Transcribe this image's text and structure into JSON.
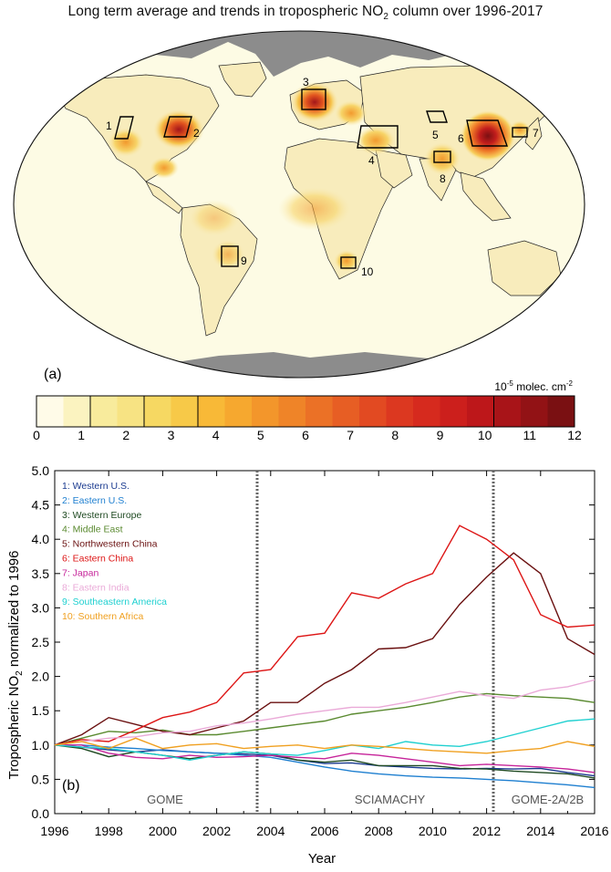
{
  "figure": {
    "title_main": "Long term average and trends in tropospheric NO",
    "title_sub": "2",
    "title_tail": " column over 1996-2017"
  },
  "map": {
    "panel_label": "(a)",
    "regions": [
      {
        "id": "1",
        "name": "Western U.S."
      },
      {
        "id": "2",
        "name": "Eastern U.S."
      },
      {
        "id": "3",
        "name": "Western Europe"
      },
      {
        "id": "4",
        "name": "Middle East"
      },
      {
        "id": "5",
        "name": "Northwestern China"
      },
      {
        "id": "6",
        "name": "Eastern China"
      },
      {
        "id": "7",
        "name": "Japan"
      },
      {
        "id": "8",
        "name": "Eastern India"
      },
      {
        "id": "9",
        "name": "Southeastern America"
      },
      {
        "id": "10",
        "name": "Southern Africa"
      }
    ],
    "colors": {
      "ocean": "#fdfbe4",
      "land_low": "#f9f0c0",
      "polar": "#8c8c8c"
    }
  },
  "colorbar": {
    "unit_prefix": "10",
    "unit_exp": "-5",
    "unit_text": " molec. cm",
    "unit_exp2": "-2",
    "min": 0,
    "max": 12,
    "tick_labels": [
      "0",
      "1",
      "2",
      "3",
      "4",
      "5",
      "6",
      "7",
      "8",
      "9",
      "10",
      "11",
      "12"
    ],
    "colors": [
      "#fffbe8",
      "#fbf3c0",
      "#f8eb9c",
      "#f7e383",
      "#f6d862",
      "#f7c948",
      "#f8b937",
      "#f6a82f",
      "#f3962b",
      "#ef8428",
      "#eb7126",
      "#e75e24",
      "#e24a22",
      "#dc3820",
      "#d62a1e",
      "#cc1f1c",
      "#bd171a",
      "#a81418",
      "#921215",
      "#7a1012"
    ],
    "boxed_segments": [
      [
        2,
        4
      ],
      [
        4,
        6
      ],
      [
        17,
        20
      ]
    ]
  },
  "chart_data": {
    "type": "line",
    "panel_label": "(b)",
    "xlabel": "Year",
    "ylabel_pre": "Tropospheric NO",
    "ylabel_sub": "2",
    "ylabel_post": " normalized to 1996",
    "xlim": [
      1996,
      2016
    ],
    "ylim": [
      0.0,
      5.0
    ],
    "x_ticks": [
      1996,
      1998,
      2000,
      2002,
      2004,
      2006,
      2008,
      2010,
      2012,
      2014,
      2016
    ],
    "y_ticks": [
      "0.0",
      "0.5",
      "1.0",
      "1.5",
      "2.0",
      "2.5",
      "3.0",
      "3.5",
      "4.0",
      "4.5",
      "5.0"
    ],
    "x": [
      1996,
      1997,
      1998,
      1999,
      2000,
      2001,
      2002,
      2003,
      2004,
      2005,
      2006,
      2007,
      2008,
      2009,
      2010,
      2011,
      2012,
      2013,
      2014,
      2015,
      2016
    ],
    "series": [
      {
        "name": "1: Western U.S.",
        "color": "#1a3a8f",
        "values": [
          1.0,
          0.97,
          0.93,
          0.9,
          0.93,
          0.9,
          0.88,
          0.87,
          0.85,
          0.78,
          0.73,
          0.74,
          0.7,
          0.68,
          0.66,
          0.65,
          0.66,
          0.65,
          0.66,
          0.6,
          0.55
        ]
      },
      {
        "name": "2: Eastern U.S.",
        "color": "#1e7fd0",
        "values": [
          1.0,
          1.0,
          0.97,
          0.95,
          0.92,
          0.9,
          0.88,
          0.85,
          0.82,
          0.75,
          0.68,
          0.62,
          0.58,
          0.55,
          0.53,
          0.52,
          0.5,
          0.48,
          0.45,
          0.42,
          0.38
        ]
      },
      {
        "name": "3: Western Europe",
        "color": "#1f4a22",
        "values": [
          1.0,
          0.95,
          0.83,
          0.9,
          0.85,
          0.8,
          0.85,
          0.9,
          0.87,
          0.78,
          0.75,
          0.78,
          0.7,
          0.7,
          0.7,
          0.66,
          0.65,
          0.62,
          0.6,
          0.58,
          0.52
        ]
      },
      {
        "name": "4: Middle East",
        "color": "#5a8a30",
        "values": [
          1.0,
          1.1,
          1.2,
          1.18,
          1.22,
          1.15,
          1.15,
          1.2,
          1.25,
          1.3,
          1.35,
          1.45,
          1.5,
          1.55,
          1.62,
          1.7,
          1.75,
          1.72,
          1.7,
          1.68,
          1.62
        ]
      },
      {
        "name": "5: Northwestern China",
        "color": "#6a1010",
        "values": [
          1.0,
          1.15,
          1.4,
          1.3,
          1.2,
          1.15,
          1.25,
          1.35,
          1.62,
          1.62,
          1.9,
          2.1,
          2.4,
          2.42,
          2.55,
          3.05,
          3.45,
          3.8,
          3.5,
          2.55,
          2.32
        ]
      },
      {
        "name": "6: Eastern China",
        "color": "#dd1515",
        "values": [
          1.0,
          1.08,
          1.05,
          1.22,
          1.4,
          1.48,
          1.62,
          2.05,
          2.1,
          2.58,
          2.63,
          3.22,
          3.14,
          3.35,
          3.5,
          4.2,
          4.0,
          3.7,
          2.9,
          2.72,
          2.75
        ]
      },
      {
        "name": "7: Japan",
        "color": "#c6249a",
        "values": [
          1.0,
          1.0,
          0.88,
          0.82,
          0.8,
          0.85,
          0.82,
          0.83,
          0.85,
          0.82,
          0.8,
          0.88,
          0.85,
          0.8,
          0.75,
          0.7,
          0.72,
          0.7,
          0.68,
          0.65,
          0.6
        ]
      },
      {
        "name": "8: Eastern India",
        "color": "#eaaad8",
        "values": [
          1.0,
          1.05,
          1.1,
          1.12,
          1.18,
          1.2,
          1.28,
          1.32,
          1.38,
          1.45,
          1.5,
          1.55,
          1.55,
          1.62,
          1.7,
          1.78,
          1.72,
          1.68,
          1.8,
          1.85,
          1.95
        ]
      },
      {
        "name": "9: Southeastern America",
        "color": "#1fd0d0",
        "values": [
          1.0,
          0.97,
          0.95,
          0.9,
          0.85,
          0.78,
          0.85,
          0.9,
          0.87,
          0.85,
          0.92,
          1.0,
          0.95,
          1.05,
          1.0,
          0.98,
          1.05,
          1.15,
          1.25,
          1.35,
          1.38
        ]
      },
      {
        "name": "10: Southern Africa",
        "color": "#f0a020",
        "values": [
          1.0,
          1.05,
          0.95,
          1.1,
          0.95,
          1.0,
          1.02,
          0.95,
          0.98,
          1.0,
          0.95,
          1.0,
          0.98,
          0.95,
          0.92,
          0.9,
          0.88,
          0.92,
          0.95,
          1.05,
          0.98
        ]
      }
    ],
    "instrument_boundaries": [
      2003.5,
      2012.25
    ],
    "instruments": [
      "GOME",
      "SCIAMACHY",
      "GOME-2A/2B"
    ],
    "legend_placement": "top-left",
    "grid": false
  }
}
